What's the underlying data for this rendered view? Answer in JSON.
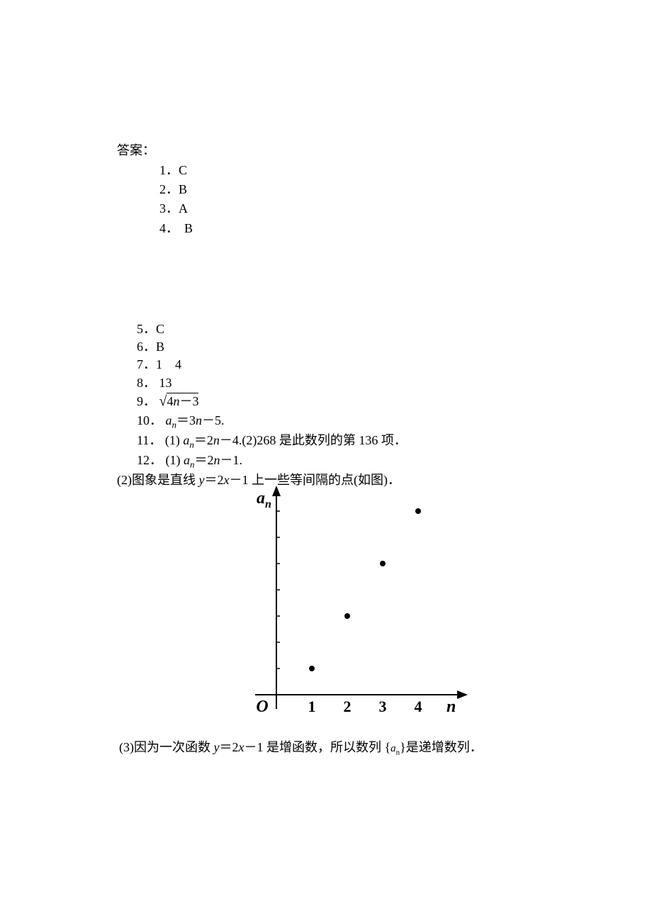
{
  "answer_label": "答案：",
  "group1": [
    {
      "num": "1．",
      "ans": "C"
    },
    {
      "num": "2．",
      "ans": "B"
    },
    {
      "num": "3．",
      "ans": "A"
    },
    {
      "num": "4．",
      "ans": "B",
      "extra_space": true
    }
  ],
  "group2_simple": [
    {
      "num": "5．",
      "ans": "C"
    },
    {
      "num": "6．",
      "ans": "B"
    },
    {
      "num": "7．",
      "ans": "1　4"
    },
    {
      "num": "8．",
      "ans": " 13"
    }
  ],
  "q9_num": "9．",
  "q9_sqrt_content": "4n－3",
  "q10_num": "10．",
  "q10_formula_prefix": "a",
  "q10_formula_sub": "n",
  "q10_formula_rest": "＝3n－5.",
  "q11_num": "11．",
  "q11_part1_prefix": "(1) a",
  "q11_part1_sub": "n",
  "q11_part1_rest": "＝2n－4.",
  "q11_part2": "(2)268 是此数列的第 136 项．",
  "q12_num": "12．",
  "q12_part1_prefix": "(1) a",
  "q12_part1_sub": "n",
  "q12_part1_rest": "＝2n－1.",
  "q12_part2_prefix": "(2)图象是直线 ",
  "q12_part2_formula": "y＝2x－1",
  "q12_part2_suffix": " 上一些等间隔的点(如图)．",
  "chart": {
    "y_label": "a",
    "y_label_sub": "n",
    "x_label": "n",
    "origin_label": "O",
    "x_ticks": [
      "1",
      "2",
      "3",
      "4"
    ],
    "points": [
      {
        "x": 1,
        "y": 1
      },
      {
        "x": 2,
        "y": 3
      },
      {
        "x": 3,
        "y": 5
      },
      {
        "x": 4,
        "y": 7
      }
    ],
    "y_tick_marks": [
      1,
      2,
      3,
      4,
      5,
      6,
      7
    ],
    "axis_color": "#000000",
    "point_color": "#000000",
    "point_radius": 4,
    "x_axis_y": 300,
    "y_axis_x": 80,
    "x_unit": 50,
    "y_unit": 37,
    "y_tick_len": 5
  },
  "footer_prefix": "(3)因为一次函数 ",
  "footer_formula": "y＝2x－1",
  "footer_mid": " 是增函数，所以数列 {",
  "footer_seq": "a",
  "footer_seq_sub": "n",
  "footer_suffix": "}是递增数列．"
}
